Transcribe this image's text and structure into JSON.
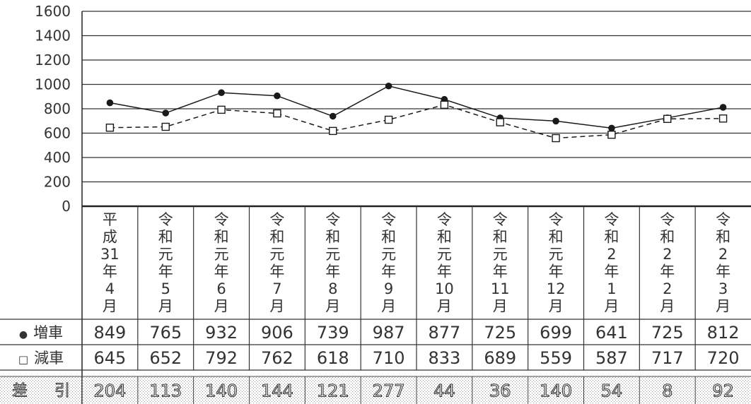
{
  "chart_data": {
    "type": "line",
    "ylim": [
      0,
      1600
    ],
    "yticks": [
      0,
      200,
      400,
      600,
      800,
      1000,
      1200,
      1400,
      1600
    ],
    "grid": true,
    "categories": [
      "平成31年4月",
      "令和元年5月",
      "令和元年6月",
      "令和元年7月",
      "令和元年8月",
      "令和元年9月",
      "令和元年10月",
      "令和元年11月",
      "令和元年12月",
      "令和2年1月",
      "令和2年2月",
      "令和2年3月"
    ],
    "category_lines": [
      [
        "平",
        "成",
        "31",
        "年",
        "4",
        "月"
      ],
      [
        "令",
        "和",
        "元",
        "年",
        "5",
        "月"
      ],
      [
        "令",
        "和",
        "元",
        "年",
        "6",
        "月"
      ],
      [
        "令",
        "和",
        "元",
        "年",
        "7",
        "月"
      ],
      [
        "令",
        "和",
        "元",
        "年",
        "8",
        "月"
      ],
      [
        "令",
        "和",
        "元",
        "年",
        "9",
        "月"
      ],
      [
        "令",
        "和",
        "元",
        "年",
        "10",
        "月"
      ],
      [
        "令",
        "和",
        "元",
        "年",
        "11",
        "月"
      ],
      [
        "令",
        "和",
        "元",
        "年",
        "12",
        "月"
      ],
      [
        "令",
        "和",
        "2",
        "年",
        "1",
        "月"
      ],
      [
        "令",
        "和",
        "2",
        "年",
        "2",
        "月"
      ],
      [
        "令",
        "和",
        "2",
        "年",
        "3",
        "月"
      ]
    ],
    "series": [
      {
        "name": "増車",
        "marker": "●",
        "style": "solid",
        "values": [
          849,
          765,
          932,
          906,
          739,
          987,
          877,
          725,
          699,
          641,
          725,
          812
        ]
      },
      {
        "name": "減車",
        "marker": "□",
        "style": "dashed",
        "values": [
          645,
          652,
          792,
          762,
          618,
          710,
          833,
          689,
          559,
          587,
          717,
          720
        ]
      }
    ],
    "difference": {
      "label": [
        "差",
        "引"
      ],
      "values": [
        204,
        113,
        140,
        144,
        121,
        277,
        44,
        36,
        140,
        54,
        8,
        92
      ]
    },
    "colors": {
      "line": "#1a1a1a",
      "grid": "#333333",
      "dot_pattern": "#9a9a9a"
    }
  }
}
